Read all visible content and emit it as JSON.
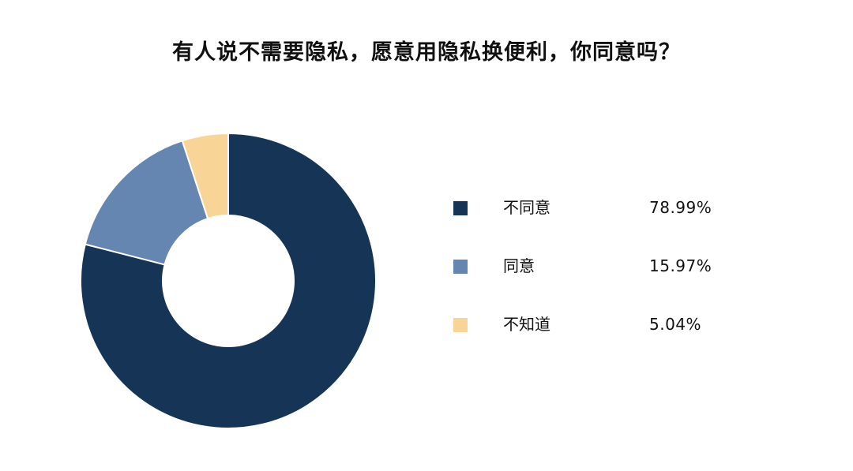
{
  "chart_data": {
    "type": "pie",
    "variant": "donut",
    "title": "有人说不需要隐私，愿意用隐私换便利，你同意吗？",
    "legend_position": "right",
    "start_angle": "top, clockwise",
    "series": [
      {
        "name": "不同意",
        "value": 78.99,
        "label": "78.99%",
        "color": "#163456"
      },
      {
        "name": "同意",
        "value": 15.97,
        "label": "15.97%",
        "color": "#6586b0"
      },
      {
        "name": "不知道",
        "value": 5.04,
        "label": "5.04%",
        "color": "#f8d496"
      }
    ]
  }
}
